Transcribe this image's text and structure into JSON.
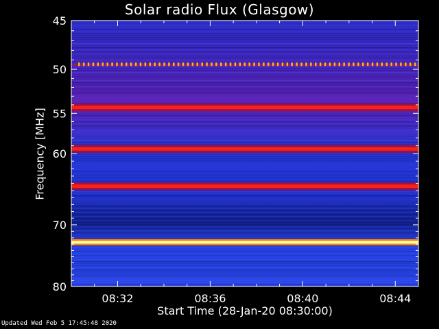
{
  "chart_data": {
    "type": "heatmap",
    "title": "Solar radio Flux (Glasgow)",
    "xlabel": "Start Time (28-Jan-20 08:30:00)",
    "ylabel": "Frequency [MHz]",
    "x_ticks": [
      "08:32",
      "08:36",
      "08:40",
      "08:44"
    ],
    "x_tick_minutes": [
      2,
      6,
      10,
      14
    ],
    "x_range_minutes": [
      0,
      15
    ],
    "y_ticks": [
      45,
      50,
      55,
      60,
      70,
      80
    ],
    "y_range_mhz": [
      45,
      80
    ],
    "colormap": [
      "#000040",
      "#1030d0",
      "#2040e0",
      "#6020c0",
      "#b01030",
      "#ff2000",
      "#ffb000",
      "#ffffc0"
    ],
    "bands": [
      {
        "mhz": 49.5,
        "level": "periodic-spikes"
      },
      {
        "mhz": 54.3,
        "level": "strong"
      },
      {
        "mhz": 59.4,
        "level": "strong"
      },
      {
        "mhz": 64.4,
        "level": "strong"
      },
      {
        "mhz": 72.7,
        "level": "saturated"
      }
    ]
  },
  "footer": {
    "updated": "Updated Wed Feb  5 17:45:48 2020"
  }
}
